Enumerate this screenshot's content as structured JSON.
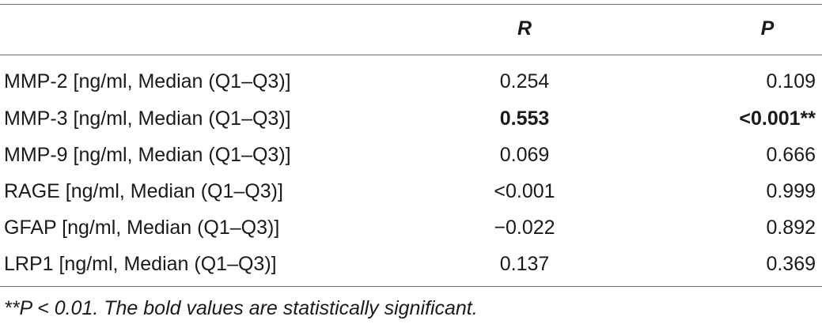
{
  "table": {
    "headers": {
      "label": "",
      "r": "R",
      "p": "P"
    },
    "rows": [
      {
        "label": "MMP-2 [ng/ml, Median (Q1–Q3)]",
        "r": "0.254",
        "p": "0.109",
        "bold": false
      },
      {
        "label": "MMP-3 [ng/ml, Median (Q1–Q3)]",
        "r": "0.553",
        "p": "<0.001**",
        "bold": true
      },
      {
        "label": "MMP-9 [ng/ml, Median (Q1–Q3)]",
        "r": "0.069",
        "p": "0.666",
        "bold": false
      },
      {
        "label": "RAGE [ng/ml, Median (Q1–Q3)]",
        "r": "<0.001",
        "p": "0.999",
        "bold": false
      },
      {
        "label": "GFAP [ng/ml, Median (Q1–Q3)]",
        "r": "−0.022",
        "p": "0.892",
        "bold": false
      },
      {
        "label": "LRP1 [ng/ml, Median (Q1–Q3)]",
        "r": "0.137",
        "p": "0.369",
        "bold": false
      }
    ],
    "footnote": "**P < 0.01. The bold values are statistically significant."
  }
}
